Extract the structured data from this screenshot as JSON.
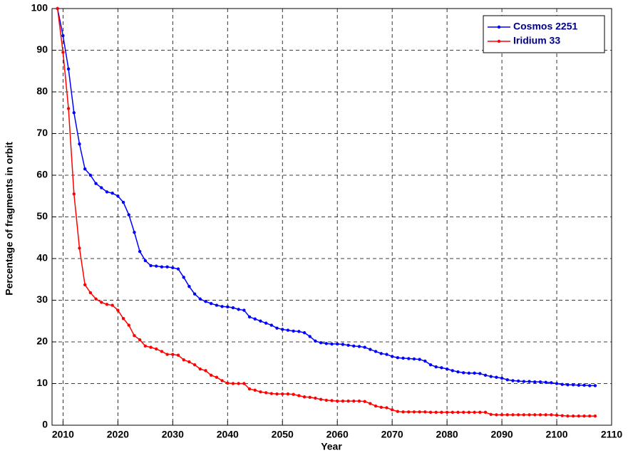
{
  "chart_data": {
    "type": "line",
    "x_label": "Year",
    "y_label": "Percentage of fragments in orbit",
    "xlim": [
      2008,
      2110
    ],
    "xticks": [
      2010,
      2020,
      2030,
      2040,
      2050,
      2060,
      2070,
      2080,
      2090,
      2100,
      2110
    ],
    "ylim": [
      0,
      100
    ],
    "yticks": [
      0,
      10,
      20,
      30,
      40,
      50,
      60,
      70,
      80,
      90,
      100
    ],
    "grid": true,
    "legend": "upper right",
    "x": [
      2009,
      2010,
      2011,
      2012,
      2013,
      2014,
      2015,
      2016,
      2017,
      2018,
      2019,
      2020,
      2021,
      2022,
      2023,
      2024,
      2025,
      2026,
      2027,
      2028,
      2029,
      2030,
      2031,
      2032,
      2033,
      2034,
      2035,
      2036,
      2037,
      2038,
      2039,
      2040,
      2041,
      2042,
      2043,
      2044,
      2045,
      2046,
      2047,
      2048,
      2049,
      2050,
      2051,
      2052,
      2053,
      2054,
      2055,
      2056,
      2057,
      2058,
      2059,
      2060,
      2061,
      2062,
      2063,
      2064,
      2065,
      2066,
      2067,
      2068,
      2069,
      2070,
      2071,
      2072,
      2073,
      2074,
      2075,
      2076,
      2077,
      2078,
      2079,
      2080,
      2081,
      2082,
      2083,
      2084,
      2085,
      2086,
      2087,
      2088,
      2089,
      2090,
      2091,
      2092,
      2093,
      2094,
      2095,
      2096,
      2097,
      2098,
      2099,
      2100,
      2101,
      2102,
      2103,
      2104,
      2105,
      2106,
      2107
    ],
    "series": [
      {
        "name": "Cosmos 2251",
        "color": "#0000ff",
        "values": [
          100,
          93.5,
          85.5,
          75,
          67.5,
          61.5,
          60,
          58,
          57,
          56,
          55.7,
          55,
          53.5,
          50.5,
          46.3,
          41.7,
          39.5,
          38.3,
          38.2,
          38,
          38,
          37.8,
          37.5,
          35.5,
          33.3,
          31.5,
          30.3,
          29.7,
          29.2,
          28.8,
          28.5,
          28.4,
          28.2,
          27.8,
          27.6,
          26,
          25.5,
          25,
          24.5,
          24,
          23.3,
          23,
          22.8,
          22.6,
          22.5,
          22.2,
          21.3,
          20.2,
          19.8,
          19.6,
          19.5,
          19.5,
          19.4,
          19.2,
          19,
          18.9,
          18.7,
          18.2,
          17.7,
          17.2,
          17,
          16.5,
          16.2,
          16.1,
          16,
          15.9,
          15.8,
          15.4,
          14.5,
          14,
          13.8,
          13.5,
          13.1,
          12.8,
          12.6,
          12.5,
          12.5,
          12.4,
          12,
          11.7,
          11.5,
          11.3,
          10.9,
          10.7,
          10.6,
          10.5,
          10.5,
          10.4,
          10.4,
          10.3,
          10.2,
          10,
          9.8,
          9.7,
          9.7,
          9.6,
          9.6,
          9.5,
          9.5
        ]
      },
      {
        "name": "Iridium 33",
        "color": "#ff0000",
        "values": [
          100,
          89.5,
          76,
          55.5,
          42.5,
          33.7,
          31.8,
          30.3,
          29.5,
          29,
          28.8,
          27.6,
          25.6,
          24,
          21.5,
          20.5,
          19,
          18.7,
          18.3,
          17.7,
          17,
          17,
          16.8,
          15.7,
          15.2,
          14.5,
          13.5,
          13.1,
          12,
          11.5,
          10.7,
          10.1,
          10,
          10,
          10,
          8.7,
          8.4,
          8,
          7.8,
          7.6,
          7.5,
          7.5,
          7.5,
          7.4,
          7.1,
          6.8,
          6.7,
          6.5,
          6.2,
          6,
          5.9,
          5.8,
          5.8,
          5.8,
          5.8,
          5.8,
          5.7,
          5.2,
          4.6,
          4.3,
          4.2,
          3.7,
          3.3,
          3.2,
          3.2,
          3.2,
          3.2,
          3.2,
          3.1,
          3.1,
          3.1,
          3.1,
          3.1,
          3.1,
          3.1,
          3.1,
          3.1,
          3.1,
          3.1,
          2.6,
          2.5,
          2.5,
          2.5,
          2.5,
          2.5,
          2.5,
          2.5,
          2.5,
          2.5,
          2.5,
          2.5,
          2.4,
          2.3,
          2.2,
          2.2,
          2.2,
          2.2,
          2.2,
          2.2
        ]
      }
    ]
  }
}
